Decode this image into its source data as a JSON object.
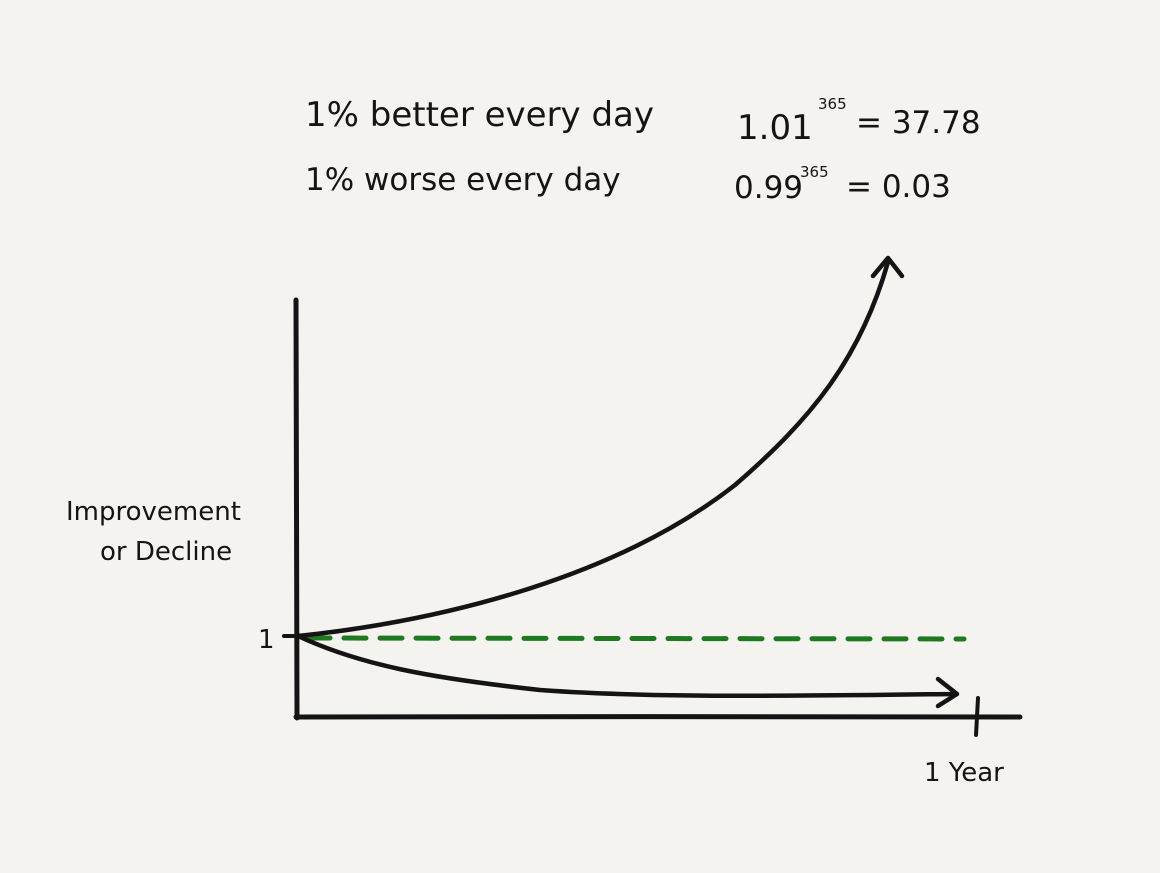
{
  "equations": {
    "better": {
      "label": "1% better every day",
      "base": "1.01",
      "exponent": "365",
      "result": "= 37.78"
    },
    "worse": {
      "label": "1% worse every day",
      "base": "0.99",
      "exponent": "365",
      "result": "= 0.03"
    }
  },
  "axes": {
    "y_label_line1": "Improvement",
    "y_label_line2": "or Decline",
    "y_tick": "1",
    "x_tick": "1 Year"
  },
  "colors": {
    "ink": "#141414",
    "baseline": "#1f7a1f",
    "paper": "#f4f3ef"
  },
  "chart_data": {
    "type": "line",
    "x": [
      0,
      365
    ],
    "series": [
      {
        "values": [
          1,
          37.78
        ]
      },
      {
        "values": [
          1,
          0.03
        ]
      }
    ],
    "baseline": 1,
    "ylabel": "Improvement or Decline",
    "xlabel": "1 Year"
  }
}
